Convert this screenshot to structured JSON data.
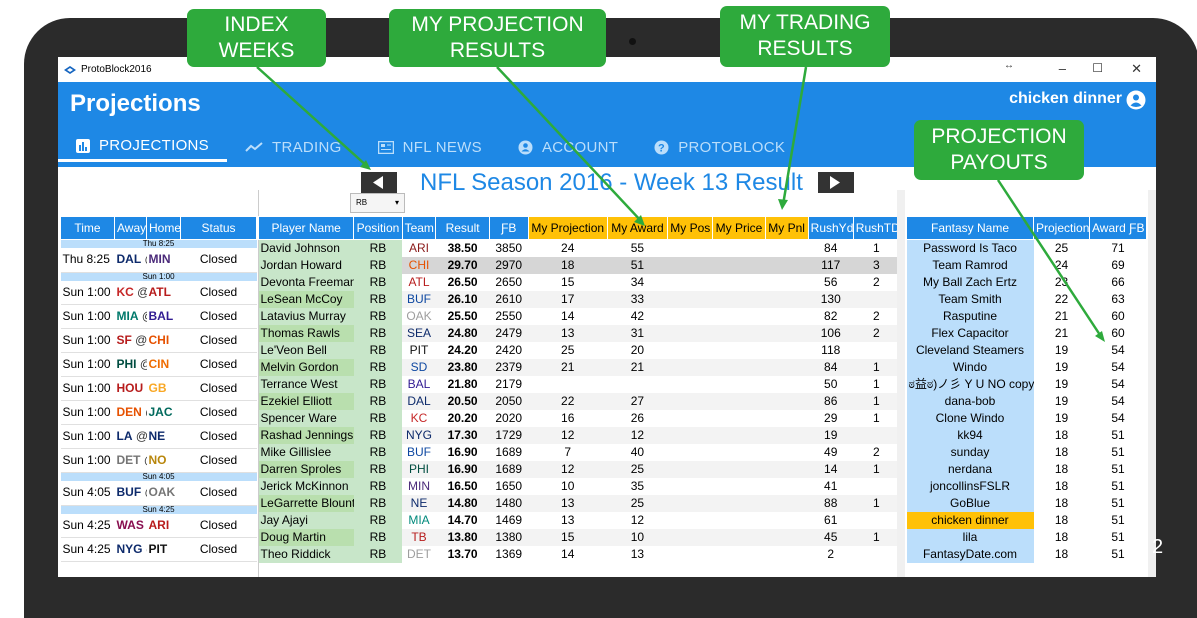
{
  "app": {
    "window_title": "ProtoBlock2016",
    "minimize": "–",
    "maximize": "☐",
    "close": "✕",
    "restore": "↔"
  },
  "header": {
    "title": "Projections",
    "username": "chicken dinner"
  },
  "tabs": [
    {
      "label": "PROJECTIONS",
      "icon": "bar-chart-icon"
    },
    {
      "label": "TRADING",
      "icon": "trend-line-icon"
    },
    {
      "label": "NFL NEWS",
      "icon": "newspaper-icon"
    },
    {
      "label": "ACCOUNT",
      "icon": "account-circle-icon"
    },
    {
      "label": "PROTOBLOCK",
      "icon": "help-circle-icon"
    }
  ],
  "week": {
    "title": "NFL Season 2016 - Week 13 Result",
    "position_filter": "RB"
  },
  "schedule": {
    "headers": [
      "Time",
      "Away",
      "Home",
      "Status"
    ],
    "rows": [
      {
        "sep": "Thu 8:25"
      },
      {
        "time": "Thu 8:25",
        "away": "DAL",
        "home": "MIN",
        "status": "Closed",
        "ac": "#0d2a6b",
        "hc": "#4b2a7a"
      },
      {
        "sep": "Sun 1:00"
      },
      {
        "time": "Sun 1:00",
        "away": "KC",
        "home": "ATL",
        "status": "Closed",
        "ac": "#c62828",
        "hc": "#b71c1c"
      },
      {
        "time": "Sun 1:00",
        "away": "MIA",
        "home": "BAL",
        "status": "Closed",
        "ac": "#00796b",
        "hc": "#311b92"
      },
      {
        "time": "Sun 1:00",
        "away": "SF",
        "home": "CHI",
        "status": "Closed",
        "ac": "#b71c1c",
        "hc": "#e65100"
      },
      {
        "time": "Sun 1:00",
        "away": "PHI",
        "home": "CIN",
        "status": "Closed",
        "ac": "#004d40",
        "hc": "#ef6c00"
      },
      {
        "time": "Sun 1:00",
        "away": "HOU",
        "home": "GB",
        "status": "Closed",
        "ac": "#b71c1c",
        "hc": "#f9a825"
      },
      {
        "time": "Sun 1:00",
        "away": "DEN",
        "home": "JAC",
        "status": "Closed",
        "ac": "#e65100",
        "hc": "#00695c"
      },
      {
        "time": "Sun 1:00",
        "away": "LA",
        "home": "NE",
        "status": "Closed",
        "ac": "#0d2a6b",
        "hc": "#0d2a6b"
      },
      {
        "time": "Sun 1:00",
        "away": "DET",
        "home": "NO",
        "status": "Closed",
        "ac": "#757575",
        "hc": "#b8860b"
      },
      {
        "sep": "Sun 4:05"
      },
      {
        "time": "Sun 4:05",
        "away": "BUF",
        "home": "OAK",
        "status": "Closed",
        "ac": "#0d2a6b",
        "hc": "#757575"
      },
      {
        "sep": "Sun 4:25"
      },
      {
        "time": "Sun 4:25",
        "away": "WAS",
        "home": "ARI",
        "status": "Closed",
        "ac": "#880e4f",
        "hc": "#b71c1c"
      },
      {
        "time": "Sun 4:25",
        "away": "NYG",
        "home": "PIT",
        "status": "Closed",
        "ac": "#0d2a6b",
        "hc": "#111111"
      }
    ]
  },
  "players": {
    "headers": [
      "Player Name",
      "Position",
      "Team",
      "Result",
      "ƑB",
      "My Projection",
      "My Award",
      "My Pos",
      "My Price",
      "My Pnl",
      "RushYd",
      "RushTD"
    ],
    "rows": [
      [
        "David Johnson",
        "RB",
        "ARI",
        "38.50",
        "3850",
        "24",
        "55",
        "",
        "",
        "",
        "84",
        "1"
      ],
      [
        "Jordan Howard",
        "RB",
        "CHI",
        "29.70",
        "2970",
        "18",
        "51",
        "",
        "",
        "",
        "117",
        "3"
      ],
      [
        "Devonta Freeman",
        "RB",
        "ATL",
        "26.50",
        "2650",
        "15",
        "34",
        "",
        "",
        "",
        "56",
        "2"
      ],
      [
        "LeSean McCoy",
        "RB",
        "BUF",
        "26.10",
        "2610",
        "17",
        "33",
        "",
        "",
        "",
        "130",
        ""
      ],
      [
        "Latavius Murray",
        "RB",
        "OAK",
        "25.50",
        "2550",
        "14",
        "42",
        "",
        "",
        "",
        "82",
        "2"
      ],
      [
        "Thomas Rawls",
        "RB",
        "SEA",
        "24.80",
        "2479",
        "13",
        "31",
        "",
        "",
        "",
        "106",
        "2"
      ],
      [
        "Le'Veon Bell",
        "RB",
        "PIT",
        "24.20",
        "2420",
        "25",
        "20",
        "",
        "",
        "",
        "118",
        ""
      ],
      [
        "Melvin Gordon",
        "RB",
        "SD",
        "23.80",
        "2379",
        "21",
        "21",
        "",
        "",
        "",
        "84",
        "1"
      ],
      [
        "Terrance West",
        "RB",
        "BAL",
        "21.80",
        "2179",
        "",
        "",
        "",
        "",
        "",
        "50",
        "1"
      ],
      [
        "Ezekiel Elliott",
        "RB",
        "DAL",
        "20.50",
        "2050",
        "22",
        "27",
        "",
        "",
        "",
        "86",
        "1"
      ],
      [
        "Spencer Ware",
        "RB",
        "KC",
        "20.20",
        "2020",
        "16",
        "26",
        "",
        "",
        "",
        "29",
        "1"
      ],
      [
        "Rashad Jennings",
        "RB",
        "NYG",
        "17.30",
        "1729",
        "12",
        "12",
        "",
        "",
        "",
        "19",
        ""
      ],
      [
        "Mike Gillislee",
        "RB",
        "BUF",
        "16.90",
        "1689",
        "7",
        "40",
        "",
        "",
        "",
        "49",
        "2"
      ],
      [
        "Darren Sproles",
        "RB",
        "PHI",
        "16.90",
        "1689",
        "12",
        "25",
        "",
        "",
        "",
        "14",
        "1"
      ],
      [
        "Jerick McKinnon",
        "RB",
        "MIN",
        "16.50",
        "1650",
        "10",
        "35",
        "",
        "",
        "",
        "41",
        ""
      ],
      [
        "LeGarrette Blount",
        "RB",
        "NE",
        "14.80",
        "1480",
        "13",
        "25",
        "",
        "",
        "",
        "88",
        "1"
      ],
      [
        "Jay Ajayi",
        "RB",
        "MIA",
        "14.70",
        "1469",
        "13",
        "12",
        "",
        "",
        "",
        "61",
        ""
      ],
      [
        "Doug Martin",
        "RB",
        "TB",
        "13.80",
        "1380",
        "15",
        "10",
        "",
        "",
        "",
        "45",
        "1"
      ],
      [
        "Theo Riddick",
        "RB",
        "DET",
        "13.70",
        "1369",
        "14",
        "13",
        "",
        "",
        "",
        "2",
        ""
      ]
    ],
    "team_colors": {
      "ARI": "#8b1a1a",
      "CHI": "#e65100",
      "ATL": "#b71c1c",
      "BUF": "#0d47a1",
      "OAK": "#9e9e9e",
      "SEA": "#0d2a6b",
      "PIT": "#111111",
      "SD": "#0d47a1",
      "BAL": "#311b92",
      "DAL": "#0d2a6b",
      "KC": "#c62828",
      "NYG": "#0d2a6b",
      "PHI": "#004d40",
      "MIN": "#4b2a7a",
      "NE": "#0d2a6b",
      "MIA": "#00897b",
      "TB": "#b71c1c",
      "DET": "#9e9e9e"
    }
  },
  "fantasy": {
    "headers": [
      "Fantasy Name",
      "Projection",
      "Award ƑB"
    ],
    "rows": [
      [
        "Password Is Taco",
        "25",
        "71"
      ],
      [
        "Team Ramrod",
        "24",
        "69"
      ],
      [
        "My Ball Zach Ertz",
        "23",
        "66"
      ],
      [
        "Team Smith",
        "22",
        "63"
      ],
      [
        "Rasputine",
        "21",
        "60"
      ],
      [
        "Flex Capacitor",
        "21",
        "60"
      ],
      [
        "Cleveland Steamers",
        "19",
        "54"
      ],
      [
        "Windo",
        "19",
        "54"
      ],
      [
        "ಠ益ಠ)ノ彡 Y U NO copy",
        "19",
        "54"
      ],
      [
        "dana-bob",
        "19",
        "54"
      ],
      [
        "Clone Windo",
        "19",
        "54"
      ],
      [
        "kk94",
        "18",
        "51"
      ],
      [
        "sunday",
        "18",
        "51"
      ],
      [
        "nerdana",
        "18",
        "51"
      ],
      [
        "joncollinsFSLR",
        "18",
        "51"
      ],
      [
        "GoBlue",
        "18",
        "51"
      ],
      [
        "chicken dinner",
        "18",
        "51"
      ],
      [
        "lila",
        "18",
        "51"
      ],
      [
        "FantasyDate.com",
        "18",
        "51"
      ]
    ]
  },
  "callouts": [
    {
      "text": "INDEX WEEKS"
    },
    {
      "text": "MY PROJECTION RESULTS"
    },
    {
      "text": "MY TRADING RESULTS"
    },
    {
      "text": "PROJECTION PAYOUTS"
    }
  ],
  "page_number": "2"
}
